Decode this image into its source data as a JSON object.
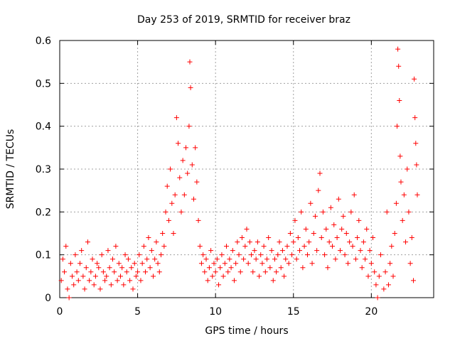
{
  "chart_data": {
    "type": "scatter",
    "title": "Day 253 of 2019, SRMTID for receiver braz",
    "xlabel": "GPS time / hours",
    "ylabel": "SRMTID / TECUs",
    "xlim": [
      0,
      24
    ],
    "ylim": [
      0,
      0.6
    ],
    "x_ticks": [
      0,
      5,
      10,
      15,
      20
    ],
    "x_tick_labels": [
      "0",
      "5",
      "10",
      "15",
      "20"
    ],
    "y_ticks": [
      0,
      0.1,
      0.2,
      0.3,
      0.4,
      0.5,
      0.6
    ],
    "y_tick_labels": [
      "0",
      "0.1",
      "0.2",
      "0.3",
      "0.4",
      "0.5",
      "0.6"
    ],
    "grid": true,
    "marker": "+",
    "marker_color": "#ff0000",
    "series": [
      {
        "name": "braz",
        "points": [
          [
            0.1,
            0.04
          ],
          [
            0.2,
            0.09
          ],
          [
            0.3,
            0.06
          ],
          [
            0.4,
            0.12
          ],
          [
            0.5,
            0.02
          ],
          [
            0.6,
            0.0
          ],
          [
            0.7,
            0.08
          ],
          [
            0.8,
            0.05
          ],
          [
            0.9,
            0.03
          ],
          [
            1.0,
            0.1
          ],
          [
            1.1,
            0.06
          ],
          [
            1.2,
            0.04
          ],
          [
            1.3,
            0.08
          ],
          [
            1.4,
            0.11
          ],
          [
            1.5,
            0.05
          ],
          [
            1.6,
            0.02
          ],
          [
            1.7,
            0.07
          ],
          [
            1.8,
            0.13
          ],
          [
            1.9,
            0.04
          ],
          [
            2.0,
            0.06
          ],
          [
            2.1,
            0.09
          ],
          [
            2.2,
            0.03
          ],
          [
            2.3,
            0.05
          ],
          [
            2.4,
            0.08
          ],
          [
            2.5,
            0.07
          ],
          [
            2.6,
            0.02
          ],
          [
            2.7,
            0.1
          ],
          [
            2.8,
            0.06
          ],
          [
            2.9,
            0.04
          ],
          [
            3.0,
            0.05
          ],
          [
            3.1,
            0.11
          ],
          [
            3.2,
            0.07
          ],
          [
            3.3,
            0.03
          ],
          [
            3.4,
            0.09
          ],
          [
            3.5,
            0.06
          ],
          [
            3.6,
            0.12
          ],
          [
            3.7,
            0.04
          ],
          [
            3.8,
            0.08
          ],
          [
            3.9,
            0.05
          ],
          [
            4.0,
            0.07
          ],
          [
            4.1,
            0.03
          ],
          [
            4.2,
            0.1
          ],
          [
            4.3,
            0.06
          ],
          [
            4.4,
            0.09
          ],
          [
            4.5,
            0.04
          ],
          [
            4.6,
            0.07
          ],
          [
            4.7,
            0.02
          ],
          [
            4.8,
            0.08
          ],
          [
            4.9,
            0.05
          ],
          [
            5.0,
            0.06
          ],
          [
            5.1,
            0.1
          ],
          [
            5.2,
            0.04
          ],
          [
            5.3,
            0.08
          ],
          [
            5.4,
            0.12
          ],
          [
            5.5,
            0.06
          ],
          [
            5.6,
            0.09
          ],
          [
            5.7,
            0.14
          ],
          [
            5.8,
            0.07
          ],
          [
            5.9,
            0.11
          ],
          [
            6.0,
            0.05
          ],
          [
            6.1,
            0.09
          ],
          [
            6.2,
            0.13
          ],
          [
            6.3,
            0.08
          ],
          [
            6.4,
            0.06
          ],
          [
            6.5,
            0.1
          ],
          [
            6.6,
            0.15
          ],
          [
            6.7,
            0.12
          ],
          [
            6.8,
            0.2
          ],
          [
            6.9,
            0.26
          ],
          [
            7.0,
            0.18
          ],
          [
            7.1,
            0.3
          ],
          [
            7.2,
            0.22
          ],
          [
            7.3,
            0.15
          ],
          [
            7.4,
            0.24
          ],
          [
            7.5,
            0.42
          ],
          [
            7.6,
            0.36
          ],
          [
            7.7,
            0.28
          ],
          [
            7.8,
            0.2
          ],
          [
            7.9,
            0.32
          ],
          [
            8.0,
            0.24
          ],
          [
            8.1,
            0.35
          ],
          [
            8.2,
            0.29
          ],
          [
            8.3,
            0.4
          ],
          [
            8.35,
            0.55
          ],
          [
            8.4,
            0.49
          ],
          [
            8.5,
            0.31
          ],
          [
            8.6,
            0.23
          ],
          [
            8.7,
            0.35
          ],
          [
            8.8,
            0.27
          ],
          [
            8.9,
            0.18
          ],
          [
            9.0,
            0.12
          ],
          [
            9.1,
            0.08
          ],
          [
            9.2,
            0.1
          ],
          [
            9.3,
            0.06
          ],
          [
            9.4,
            0.09
          ],
          [
            9.5,
            0.04
          ],
          [
            9.6,
            0.07
          ],
          [
            9.7,
            0.11
          ],
          [
            9.8,
            0.05
          ],
          [
            9.9,
            0.08
          ],
          [
            10.0,
            0.06
          ],
          [
            10.1,
            0.09
          ],
          [
            10.2,
            0.03
          ],
          [
            10.3,
            0.07
          ],
          [
            10.4,
            0.1
          ],
          [
            10.5,
            0.05
          ],
          [
            10.6,
            0.08
          ],
          [
            10.7,
            0.12
          ],
          [
            10.8,
            0.06
          ],
          [
            10.9,
            0.09
          ],
          [
            11.0,
            0.07
          ],
          [
            11.1,
            0.11
          ],
          [
            11.2,
            0.04
          ],
          [
            11.3,
            0.08
          ],
          [
            11.4,
            0.13
          ],
          [
            11.5,
            0.1
          ],
          [
            11.6,
            0.06
          ],
          [
            11.7,
            0.14
          ],
          [
            11.8,
            0.09
          ],
          [
            11.9,
            0.12
          ],
          [
            12.0,
            0.16
          ],
          [
            12.1,
            0.08
          ],
          [
            12.2,
            0.13
          ],
          [
            12.3,
            0.1
          ],
          [
            12.4,
            0.06
          ],
          [
            12.5,
            0.11
          ],
          [
            12.6,
            0.09
          ],
          [
            12.7,
            0.13
          ],
          [
            12.8,
            0.05
          ],
          [
            12.9,
            0.1
          ],
          [
            13.0,
            0.08
          ],
          [
            13.1,
            0.12
          ],
          [
            13.2,
            0.06
          ],
          [
            13.3,
            0.09
          ],
          [
            13.4,
            0.14
          ],
          [
            13.5,
            0.07
          ],
          [
            13.6,
            0.11
          ],
          [
            13.7,
            0.04
          ],
          [
            13.8,
            0.09
          ],
          [
            13.9,
            0.06
          ],
          [
            14.0,
            0.1
          ],
          [
            14.1,
            0.13
          ],
          [
            14.2,
            0.07
          ],
          [
            14.3,
            0.11
          ],
          [
            14.4,
            0.05
          ],
          [
            14.5,
            0.09
          ],
          [
            14.6,
            0.12
          ],
          [
            14.7,
            0.08
          ],
          [
            14.8,
            0.15
          ],
          [
            14.9,
            0.1
          ],
          [
            15.0,
            0.13
          ],
          [
            15.1,
            0.18
          ],
          [
            15.2,
            0.09
          ],
          [
            15.3,
            0.14
          ],
          [
            15.4,
            0.11
          ],
          [
            15.5,
            0.2
          ],
          [
            15.6,
            0.07
          ],
          [
            15.7,
            0.12
          ],
          [
            15.8,
            0.16
          ],
          [
            15.9,
            0.1
          ],
          [
            16.0,
            0.13
          ],
          [
            16.1,
            0.22
          ],
          [
            16.2,
            0.08
          ],
          [
            16.3,
            0.15
          ],
          [
            16.4,
            0.19
          ],
          [
            16.5,
            0.11
          ],
          [
            16.6,
            0.25
          ],
          [
            16.7,
            0.29
          ],
          [
            16.8,
            0.14
          ],
          [
            16.9,
            0.2
          ],
          [
            17.0,
            0.1
          ],
          [
            17.1,
            0.16
          ],
          [
            17.2,
            0.07
          ],
          [
            17.3,
            0.13
          ],
          [
            17.4,
            0.21
          ],
          [
            17.5,
            0.12
          ],
          [
            17.6,
            0.17
          ],
          [
            17.7,
            0.09
          ],
          [
            17.8,
            0.14
          ],
          [
            17.9,
            0.23
          ],
          [
            18.0,
            0.11
          ],
          [
            18.1,
            0.16
          ],
          [
            18.2,
            0.19
          ],
          [
            18.3,
            0.1
          ],
          [
            18.4,
            0.15
          ],
          [
            18.5,
            0.08
          ],
          [
            18.6,
            0.13
          ],
          [
            18.7,
            0.2
          ],
          [
            18.8,
            0.12
          ],
          [
            18.9,
            0.24
          ],
          [
            19.0,
            0.09
          ],
          [
            19.1,
            0.14
          ],
          [
            19.2,
            0.18
          ],
          [
            19.3,
            0.11
          ],
          [
            19.4,
            0.07
          ],
          [
            19.5,
            0.13
          ],
          [
            19.6,
            0.09
          ],
          [
            19.7,
            0.16
          ],
          [
            19.8,
            0.05
          ],
          [
            19.9,
            0.11
          ],
          [
            20.0,
            0.08
          ],
          [
            20.1,
            0.14
          ],
          [
            20.2,
            0.06
          ],
          [
            20.3,
            0.03
          ],
          [
            20.4,
            0.0
          ],
          [
            20.5,
            0.05
          ],
          [
            20.6,
            0.1
          ],
          [
            20.8,
            0.02
          ],
          [
            20.9,
            0.06
          ],
          [
            21.0,
            0.2
          ],
          [
            21.1,
            0.03
          ],
          [
            21.2,
            0.08
          ],
          [
            21.3,
            0.12
          ],
          [
            21.4,
            0.05
          ],
          [
            21.5,
            0.15
          ],
          [
            21.6,
            0.22
          ],
          [
            21.65,
            0.4
          ],
          [
            21.7,
            0.58
          ],
          [
            21.75,
            0.54
          ],
          [
            21.8,
            0.46
          ],
          [
            21.85,
            0.33
          ],
          [
            21.9,
            0.27
          ],
          [
            22.0,
            0.18
          ],
          [
            22.1,
            0.24
          ],
          [
            22.2,
            0.13
          ],
          [
            22.3,
            0.3
          ],
          [
            22.4,
            0.2
          ],
          [
            22.5,
            0.08
          ],
          [
            22.6,
            0.14
          ],
          [
            22.7,
            0.04
          ],
          [
            22.75,
            0.51
          ],
          [
            22.8,
            0.42
          ],
          [
            22.85,
            0.36
          ],
          [
            22.9,
            0.31
          ],
          [
            22.95,
            0.24
          ]
        ]
      }
    ]
  }
}
